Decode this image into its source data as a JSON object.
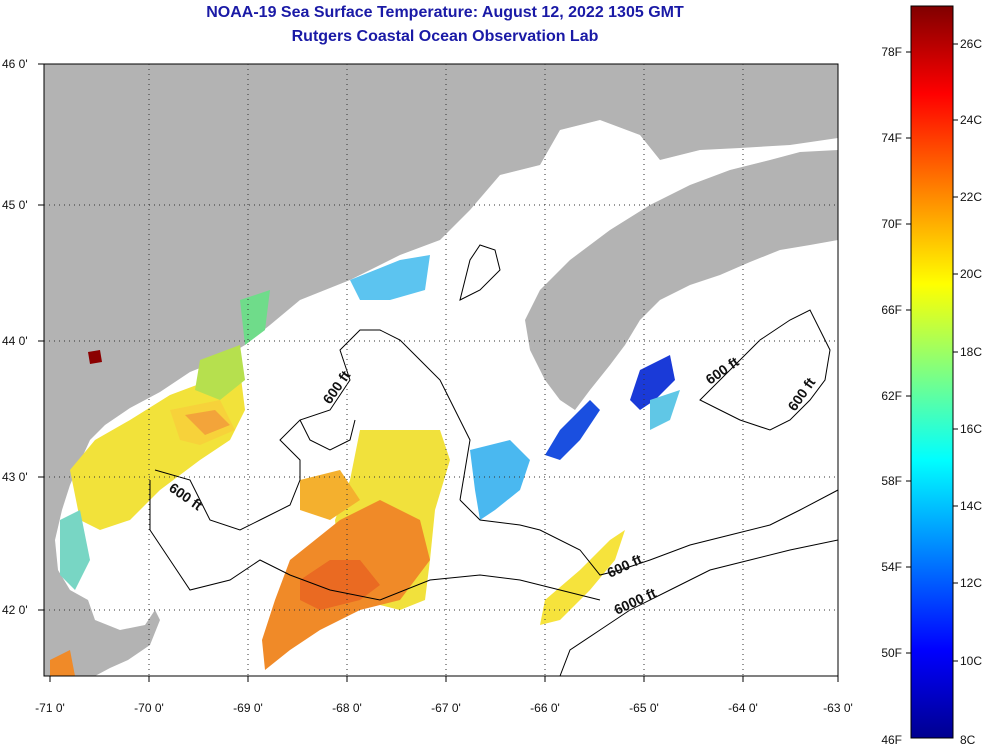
{
  "title": "NOAA-19 Sea Surface Temperature:  August 12, 2022 1305 GMT",
  "subtitle": "Rutgers Coastal Ocean Observation Lab",
  "map": {
    "lon_labels": [
      "-71 0'",
      "-70 0'",
      "-69 0'",
      "-68 0'",
      "-67 0'",
      "-66 0'",
      "-65 0'",
      "-64 0'",
      "-63 0'"
    ],
    "lat_labels": [
      "46 0'",
      "45 0'",
      "44 0'",
      "43 0'",
      "42 0'"
    ],
    "contour_labels": [
      "600 ft",
      "600 ft",
      "600 ft",
      "600 ft",
      "600 ft",
      "6000 ft"
    ],
    "colors": {
      "land": "#b3b3b3",
      "water_nodata": "#ffffff",
      "contour": "#000000"
    }
  },
  "colorbar": {
    "fahrenheit_labels": [
      "78F",
      "74F",
      "70F",
      "66F",
      "62F",
      "58F",
      "54F",
      "50F",
      "46F"
    ],
    "celsius_labels": [
      "26C",
      "24C",
      "22C",
      "20C",
      "18C",
      "16C",
      "14C",
      "12C",
      "10C",
      "8C"
    ],
    "stops": [
      "#00008f",
      "#0000ff",
      "#0080ff",
      "#00ffff",
      "#80ff80",
      "#ffff00",
      "#ff8000",
      "#ff0000",
      "#800000"
    ]
  }
}
